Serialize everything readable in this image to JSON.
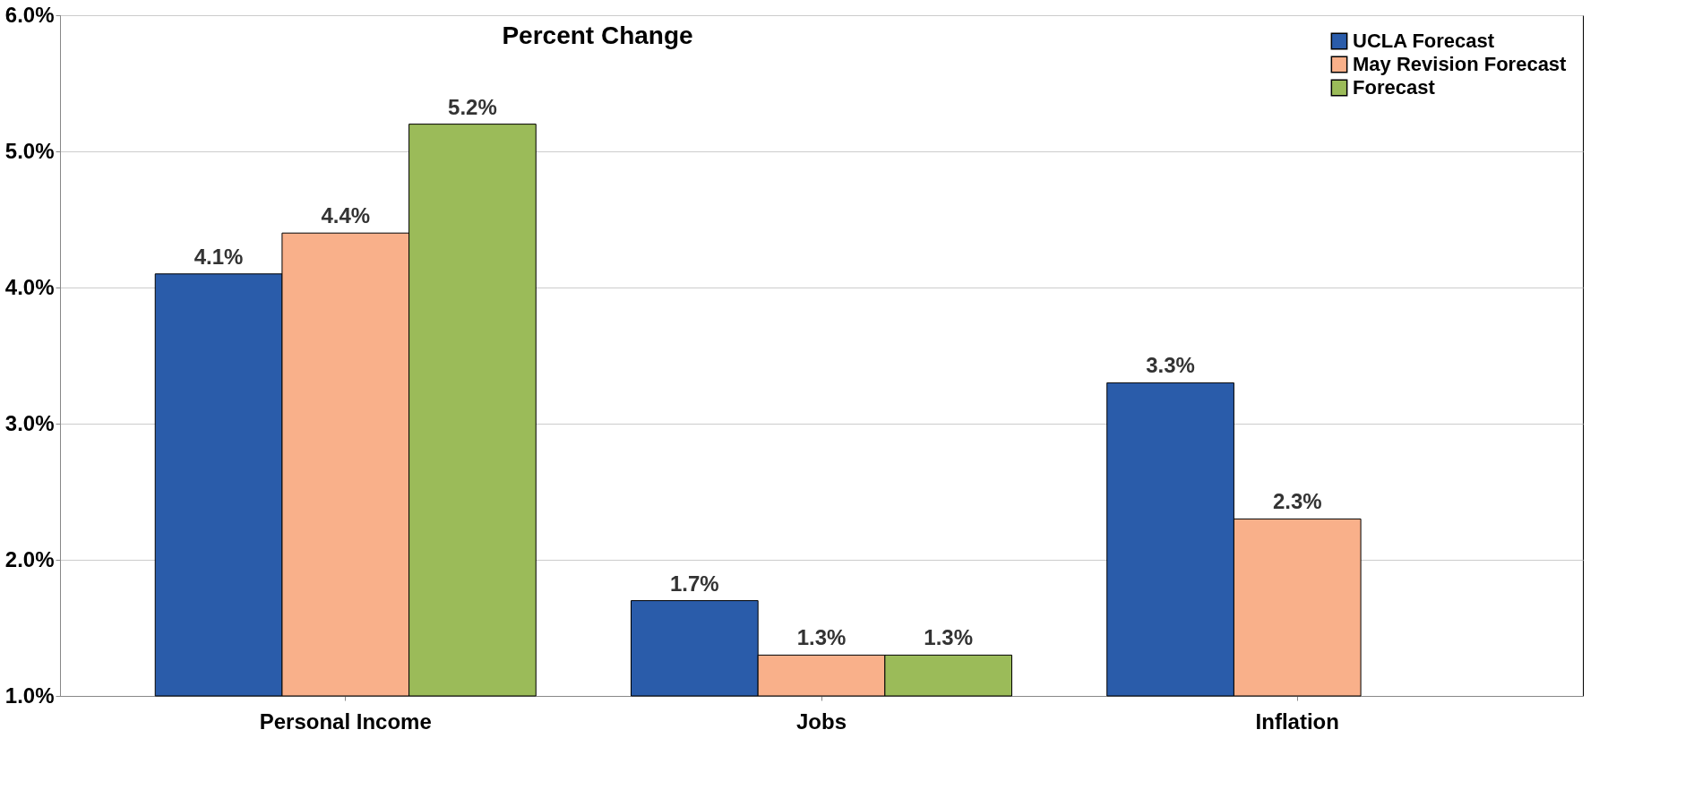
{
  "chart_data": {
    "type": "bar",
    "title": "Percent Change",
    "categories": [
      "Personal Income",
      "Jobs",
      "Inflation"
    ],
    "series": [
      {
        "name": "UCLA Forecast",
        "color": "#2a5caa",
        "values": [
          4.1,
          1.7,
          3.3
        ],
        "value_labels": [
          "4.1%",
          "1.7%",
          "3.3%"
        ]
      },
      {
        "name": "May Revision Forecast",
        "color": "#f9b08a",
        "values": [
          4.4,
          1.3,
          2.3
        ],
        "value_labels": [
          "4.4%",
          "1.3%",
          "2.3%"
        ]
      },
      {
        "name": "Forecast",
        "color": "#9bbb59",
        "values": [
          5.2,
          1.3,
          null
        ],
        "value_labels": [
          "5.2%",
          "1.3%",
          null
        ]
      }
    ],
    "ylim": [
      1.0,
      6.0
    ],
    "yticks": [
      {
        "value": 1.0,
        "label": "1.0%"
      },
      {
        "value": 2.0,
        "label": "2.0%"
      },
      {
        "value": 3.0,
        "label": "3.0%"
      },
      {
        "value": 4.0,
        "label": "4.0%"
      },
      {
        "value": 5.0,
        "label": "5.0%"
      },
      {
        "value": 6.0,
        "label": "6.0%"
      }
    ],
    "grid": "y",
    "legend": "top right"
  }
}
